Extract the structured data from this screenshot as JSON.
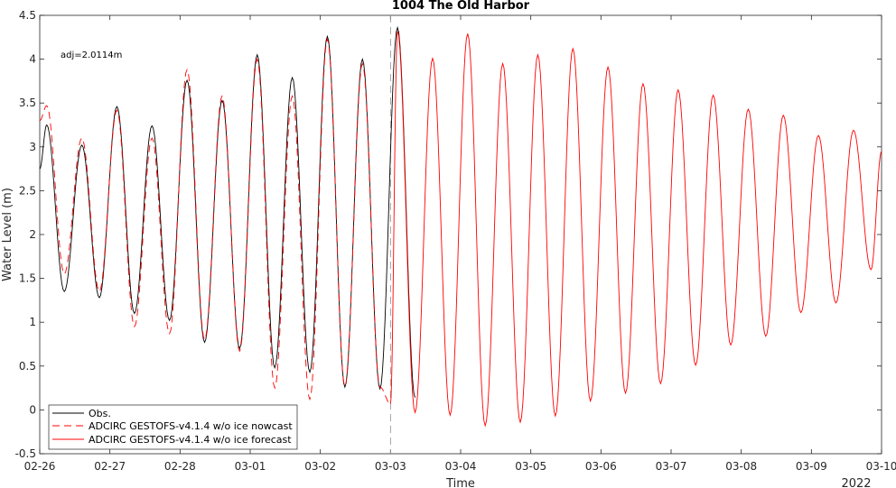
{
  "chart_data": {
    "type": "line",
    "title": "1004 The Old Harbor",
    "xlabel": "Time",
    "ylabel": "Water Level (m)",
    "annotation": "adj=2.0114m",
    "x_year_label": "2022",
    "x_tick_labels": [
      "02-26",
      "02-27",
      "02-28",
      "03-01",
      "03-02",
      "03-03",
      "03-04",
      "03-05",
      "03-06",
      "03-07",
      "03-08",
      "03-09",
      "03-10"
    ],
    "y_tick_labels": [
      "-0.5",
      "0",
      "0.5",
      "1",
      "1.5",
      "2",
      "2.5",
      "3",
      "3.5",
      "4",
      "4.5"
    ],
    "xlim_days": [
      0,
      12
    ],
    "ylim": [
      -0.5,
      4.5
    ],
    "grid": false,
    "legend_position": "bottom-left",
    "nowcast_end_day": 5,
    "colors": {
      "obs": "#000000",
      "model": "#ff0000",
      "divider": "#8c8c8c"
    },
    "series": [
      {
        "name": "Obs.",
        "style": "solid",
        "color": "#000000",
        "points": [
          [
            0.0,
            2.75
          ],
          [
            0.1,
            3.25
          ],
          [
            0.35,
            1.35
          ],
          [
            0.6,
            3.02
          ],
          [
            0.85,
            1.28
          ],
          [
            1.1,
            3.46
          ],
          [
            1.35,
            1.1
          ],
          [
            1.6,
            3.24
          ],
          [
            1.85,
            1.02
          ],
          [
            2.1,
            3.76
          ],
          [
            2.35,
            0.77
          ],
          [
            2.6,
            3.53
          ],
          [
            2.85,
            0.7
          ],
          [
            3.1,
            4.05
          ],
          [
            3.35,
            0.48
          ],
          [
            3.6,
            3.79
          ],
          [
            3.85,
            0.43
          ],
          [
            4.1,
            4.26
          ],
          [
            4.35,
            0.26
          ],
          [
            4.6,
            4.0
          ],
          [
            4.85,
            0.24
          ],
          [
            5.1,
            4.36
          ],
          [
            5.35,
            0.14
          ]
        ]
      },
      {
        "name": "ADCIRC GESTOFS-v4.1.4 w/o ice nowcast",
        "style": "dashed",
        "color": "#ff0000",
        "points": [
          [
            0.0,
            3.3
          ],
          [
            0.1,
            3.47
          ],
          [
            0.35,
            1.55
          ],
          [
            0.6,
            3.1
          ],
          [
            0.85,
            1.35
          ],
          [
            1.1,
            3.42
          ],
          [
            1.35,
            0.95
          ],
          [
            1.6,
            3.1
          ],
          [
            1.85,
            0.87
          ],
          [
            2.1,
            3.88
          ],
          [
            2.35,
            0.8
          ],
          [
            2.6,
            3.58
          ],
          [
            2.85,
            0.67
          ],
          [
            3.1,
            4.0
          ],
          [
            3.35,
            0.25
          ],
          [
            3.6,
            3.58
          ],
          [
            3.85,
            0.12
          ],
          [
            4.1,
            4.23
          ],
          [
            4.35,
            0.27
          ],
          [
            4.6,
            3.95
          ],
          [
            4.85,
            0.26
          ],
          [
            5.0,
            0.07
          ]
        ]
      },
      {
        "name": "ADCIRC GESTOFS-v4.1.4 w/o ice forecast",
        "style": "solid",
        "color": "#ff0000",
        "points": [
          [
            5.0,
            0.07
          ],
          [
            5.1,
            4.32
          ],
          [
            5.35,
            -0.03
          ],
          [
            5.6,
            4.01
          ],
          [
            5.85,
            -0.06
          ],
          [
            6.1,
            4.29
          ],
          [
            6.35,
            -0.18
          ],
          [
            6.6,
            3.95
          ],
          [
            6.85,
            -0.14
          ],
          [
            7.1,
            4.05
          ],
          [
            7.35,
            -0.07
          ],
          [
            7.6,
            4.12
          ],
          [
            7.85,
            0.1
          ],
          [
            8.1,
            3.91
          ],
          [
            8.35,
            0.19
          ],
          [
            8.6,
            3.72
          ],
          [
            8.85,
            0.3
          ],
          [
            9.1,
            3.65
          ],
          [
            9.35,
            0.51
          ],
          [
            9.6,
            3.59
          ],
          [
            9.85,
            0.74
          ],
          [
            10.1,
            3.43
          ],
          [
            10.35,
            0.84
          ],
          [
            10.6,
            3.36
          ],
          [
            10.85,
            1.11
          ],
          [
            11.1,
            3.13
          ],
          [
            11.35,
            1.22
          ],
          [
            11.6,
            3.19
          ],
          [
            11.85,
            1.6
          ],
          [
            12.0,
            2.95
          ]
        ]
      }
    ]
  }
}
